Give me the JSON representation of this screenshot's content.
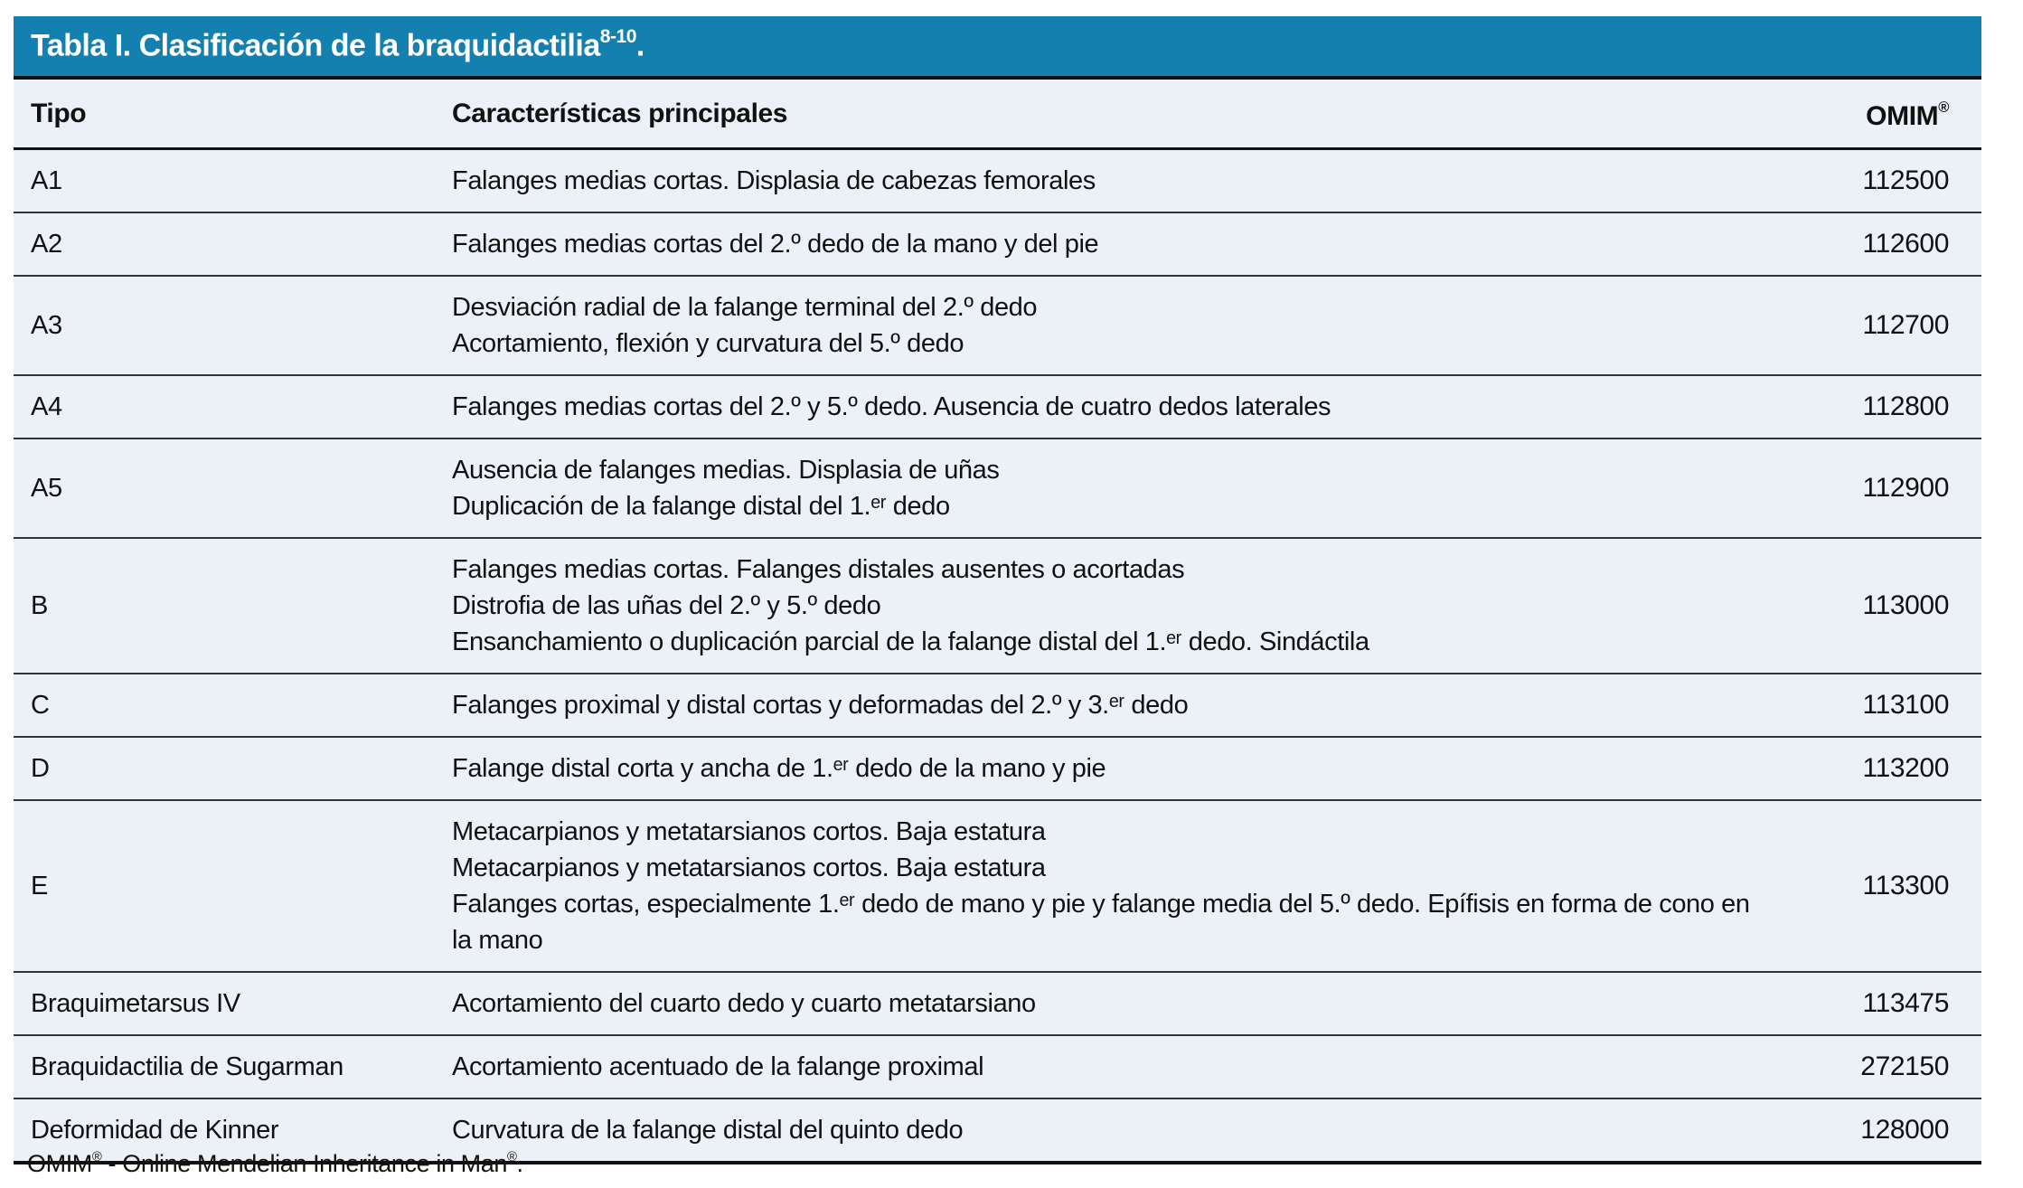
{
  "header": {
    "title_text": "Tabla I. Clasificación de la braquidactilia",
    "title_sup": "8-10",
    "title_end": "."
  },
  "columns": {
    "tipo": "Tipo",
    "caracteristicas": "Características principales",
    "omim_label": "OMIM",
    "omim_sup": "®"
  },
  "table": {
    "rows": [
      {
        "tipo": "A1",
        "lines": [
          "Falanges medias cortas. Displasia de cabezas femorales"
        ],
        "omim": "112500"
      },
      {
        "tipo": "A2",
        "lines": [
          "Falanges medias cortas del 2.º dedo de la mano y del pie"
        ],
        "omim": "112600"
      },
      {
        "tipo": "A3",
        "lines": [
          "Desviación radial de la falange terminal del 2.º dedo",
          "Acortamiento, flexión y curvatura del 5.º dedo"
        ],
        "omim": "112700"
      },
      {
        "tipo": "A4",
        "lines": [
          "Falanges medias cortas del 2.º y 5.º dedo. Ausencia de cuatro dedos laterales"
        ],
        "omim": "112800"
      },
      {
        "tipo": "A5",
        "lines": [
          "Ausencia de falanges medias. Displasia de uñas",
          "Duplicación de la falange distal del 1.ᵉʳ dedo"
        ],
        "omim": "112900"
      },
      {
        "tipo": "B",
        "lines": [
          "Falanges medias cortas. Falanges distales ausentes o acortadas",
          "Distrofia de las uñas del 2.º y 5.º dedo",
          "Ensanchamiento o duplicación parcial de la falange distal del 1.ᵉʳ dedo. Sindáctila"
        ],
        "omim": "113000"
      },
      {
        "tipo": "C",
        "lines": [
          "Falanges proximal y distal cortas y deformadas del 2.º y 3.ᵉʳ dedo"
        ],
        "omim": "113100"
      },
      {
        "tipo": "D",
        "lines": [
          "Falange distal corta y ancha de 1.ᵉʳ dedo de la mano y pie"
        ],
        "omim": "113200"
      },
      {
        "tipo": "E",
        "lines": [
          "Metacarpianos y metatarsianos cortos. Baja estatura",
          "Metacarpianos y metatarsianos cortos. Baja estatura",
          "Falanges cortas, especialmente 1.ᵉʳ dedo de mano y pie y falange media del 5.º dedo. Epífisis en forma de cono en la mano"
        ],
        "omim": "113300"
      },
      {
        "tipo": "Braquimetarsus IV",
        "lines": [
          "Acortamiento del cuarto dedo y cuarto metatarsiano"
        ],
        "omim": "113475"
      },
      {
        "tipo": "Braquidactilia de Sugarman",
        "lines": [
          "Acortamiento acentuado de la falange proximal"
        ],
        "omim": "272150"
      },
      {
        "tipo": "Deformidad de Kinner",
        "lines": [
          "Curvatura de la falange distal del quinto dedo"
        ],
        "omim": "128000"
      }
    ]
  },
  "footnote": {
    "pre": "OMIM",
    "sup1": "®",
    "mid": " - Online Mendelian Inheritance in Man",
    "sup2": "®",
    "end": "."
  },
  "colors": {
    "header_bg": "#1480af",
    "row_bg": "#ecf1f8",
    "line_dark": "#111111",
    "line_row": "#333333"
  }
}
